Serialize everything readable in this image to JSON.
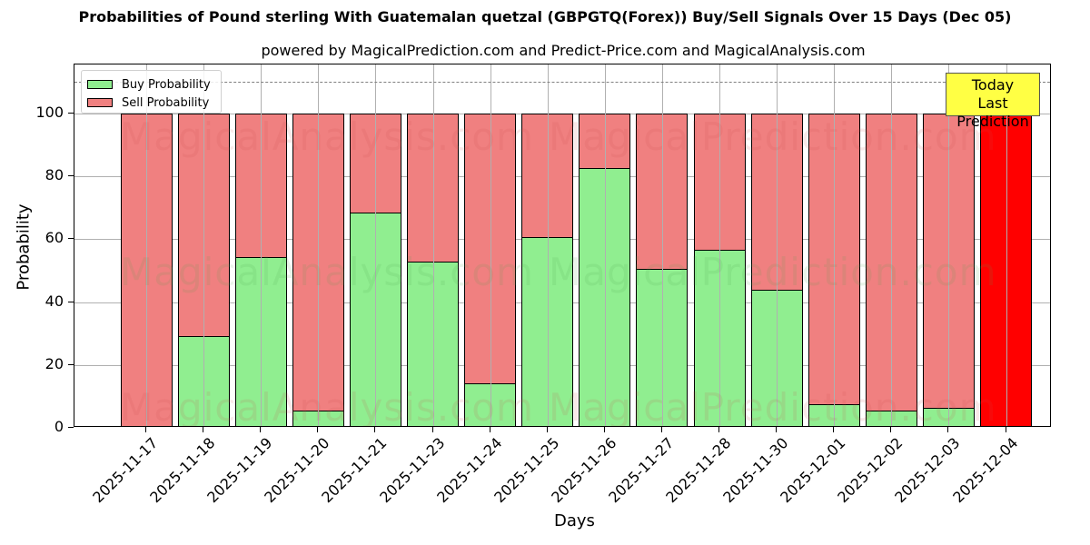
{
  "title": "Probabilities of Pound sterling With Guatemalan quetzal (GBPGTQ(Forex)) Buy/Sell Signals Over 15 Days (Dec 05)",
  "subtitle": "powered by MagicalPrediction.com and Predict-Price.com and MagicalAnalysis.com",
  "legend": {
    "buy_label": "Buy Probability",
    "sell_label": "Sell Probability"
  },
  "annotation": {
    "line1": "Today",
    "line2": "Last Prediction"
  },
  "axes": {
    "xlabel": "Days",
    "ylabel": "Probability",
    "yticks": [
      "0",
      "20",
      "40",
      "60",
      "80",
      "100"
    ]
  },
  "watermarks": [
    "MagicalAnalysis.com",
    "MagicalPrediction.com"
  ],
  "colors": {
    "buy": "#90ee90",
    "sell": "#f08080",
    "today": "#ff0000",
    "annotation_bg": "#ffff44"
  },
  "chart_data": {
    "type": "bar",
    "stacked": true,
    "title": "Probabilities of Pound sterling With Guatemalan quetzal (GBPGTQ(Forex)) Buy/Sell Signals Over 15 Days (Dec 05)",
    "subtitle": "powered by MagicalPrediction.com and Predict-Price.com and MagicalAnalysis.com",
    "xlabel": "Days",
    "ylabel": "Probability",
    "ylim": [
      0,
      115
    ],
    "yticks": [
      0,
      20,
      40,
      60,
      80,
      100
    ],
    "grid": true,
    "legend_position": "upper left",
    "reference_line": {
      "y": 110,
      "style": "dashed",
      "color": "#808080"
    },
    "categories": [
      "2025-11-17",
      "2025-11-18",
      "2025-11-19",
      "2025-11-20",
      "2025-11-21",
      "2025-11-23",
      "2025-11-24",
      "2025-11-25",
      "2025-11-26",
      "2025-11-27",
      "2025-11-28",
      "2025-11-30",
      "2025-12-01",
      "2025-12-02",
      "2025-12-03",
      "2025-12-04"
    ],
    "series": [
      {
        "name": "Buy Probability",
        "color": "#90ee90",
        "values": [
          0,
          29.2,
          54.3,
          5.5,
          68.5,
          52.9,
          14.2,
          60.7,
          82.7,
          50.6,
          56.6,
          43.9,
          7.5,
          5.5,
          6.4,
          0
        ]
      },
      {
        "name": "Sell Probability",
        "color": "#f08080",
        "values": [
          100,
          70.8,
          45.7,
          94.5,
          31.5,
          47.1,
          85.8,
          39.3,
          17.3,
          49.4,
          43.4,
          56.1,
          92.5,
          94.5,
          93.6,
          100
        ]
      }
    ],
    "annotations": [
      {
        "text": "Today\nLast Prediction",
        "x": "2025-12-04",
        "bar_color": "#ff0000"
      }
    ]
  }
}
